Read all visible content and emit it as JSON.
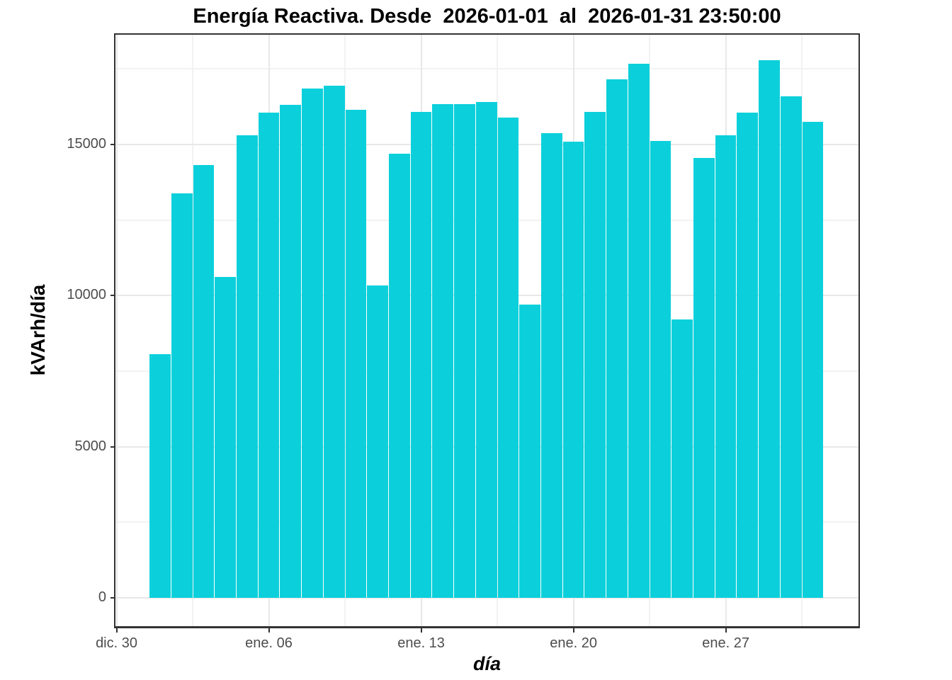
{
  "chart_data": {
    "type": "bar",
    "title": "Energía Reactiva. Desde  2026-01-01  al  2026-01-31 23:50:00",
    "xlabel": "día",
    "ylabel": "kVArh/día",
    "dates": [
      "2026-01-01",
      "2026-01-02",
      "2026-01-03",
      "2026-01-04",
      "2026-01-05",
      "2026-01-06",
      "2026-01-07",
      "2026-01-08",
      "2026-01-09",
      "2026-01-10",
      "2026-01-11",
      "2026-01-12",
      "2026-01-13",
      "2026-01-14",
      "2026-01-15",
      "2026-01-16",
      "2026-01-17",
      "2026-01-18",
      "2026-01-19",
      "2026-01-20",
      "2026-01-21",
      "2026-01-22",
      "2026-01-23",
      "2026-01-24",
      "2026-01-25",
      "2026-01-26",
      "2026-01-27",
      "2026-01-28",
      "2026-01-29",
      "2026-01-30",
      "2026-01-31"
    ],
    "values": [
      8060,
      13380,
      14320,
      10620,
      15310,
      16050,
      16320,
      16850,
      16950,
      16140,
      10330,
      14700,
      16090,
      16340,
      16330,
      16400,
      15900,
      9700,
      15370,
      15100,
      16070,
      17150,
      17670,
      15110,
      9210,
      14550,
      15300,
      16050,
      17800,
      16600,
      15750
    ],
    "x_ticks": [
      {
        "day": 0,
        "label": "dic. 30"
      },
      {
        "day": 7,
        "label": "ene. 06"
      },
      {
        "day": 14,
        "label": "ene. 13"
      },
      {
        "day": 21,
        "label": "ene. 20"
      },
      {
        "day": 28,
        "label": "ene. 27"
      }
    ],
    "x_minor_days": [
      3.5,
      10.5,
      17.5,
      24.5,
      31.5
    ],
    "y_ticks": [
      0,
      5000,
      10000,
      15000
    ],
    "y_minor_ticks": [
      2500,
      7500,
      12500,
      17500
    ],
    "xlim_days": [
      -0.05,
      34.1
    ],
    "ylim": [
      -937,
      18633
    ],
    "first_bar_day_offset": 2,
    "grid": true,
    "legend": "none"
  },
  "colors": {
    "bar": "#0bd0db",
    "grid_major": "#e8e8e8",
    "grid_minor": "#f2f2f2",
    "axis_line": "#333333",
    "tick_text": "#4d4d4d",
    "title_text": "#000000",
    "background": "#ffffff"
  }
}
